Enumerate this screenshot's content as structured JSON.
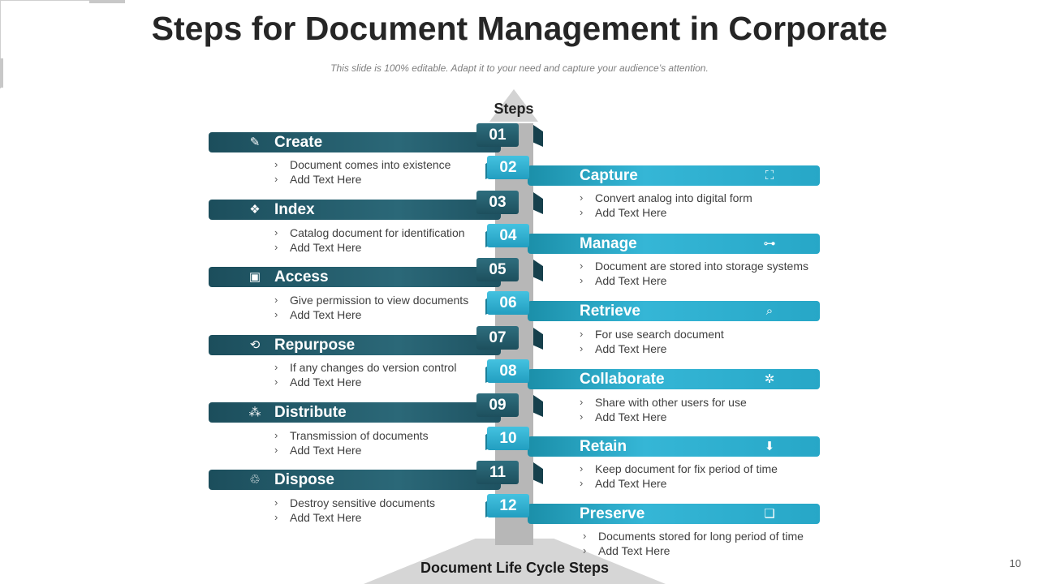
{
  "header": {
    "title": "Steps for Document Management in Corporate",
    "subtitle": "This slide is 100% editable. Adapt it to your need and capture your audience’s attention."
  },
  "diagram": {
    "steps_label": "Steps",
    "base_label": "Document Life Cycle Steps",
    "bullet_char": "›",
    "steps": [
      {
        "number": "01",
        "title": "Create",
        "icon": "edit-icon",
        "glyph": "✎",
        "points": [
          "Document comes into existence",
          "Add Text Here"
        ]
      },
      {
        "number": "02",
        "title": "Capture",
        "icon": "capture-icon",
        "glyph": "⛶",
        "points": [
          "Convert analog into digital form",
          "Add Text Here"
        ]
      },
      {
        "number": "03",
        "title": "Index",
        "icon": "index-icon",
        "glyph": "❖",
        "points": [
          "Catalog document for identification",
          "Add Text Here"
        ]
      },
      {
        "number": "04",
        "title": "Manage",
        "icon": "hierarchy-icon",
        "glyph": "⊶",
        "points": [
          "Document are stored into storage systems",
          "Add Text Here"
        ]
      },
      {
        "number": "05",
        "title": "Access",
        "icon": "monitor-icon",
        "glyph": "▣",
        "points": [
          "Give permission to view documents",
          "Add Text Here"
        ]
      },
      {
        "number": "06",
        "title": "Retrieve",
        "icon": "search-document-icon",
        "glyph": "⌕",
        "points": [
          "For use search document",
          "Add Text Here"
        ]
      },
      {
        "number": "07",
        "title": "Repurpose",
        "icon": "recycle-icon",
        "glyph": "⟲",
        "points": [
          "If any changes do version control",
          "Add Text Here"
        ]
      },
      {
        "number": "08",
        "title": "Collaborate",
        "icon": "collaborate-icon",
        "glyph": "✲",
        "points": [
          "Share with other users for use",
          "Add Text Here"
        ]
      },
      {
        "number": "09",
        "title": "Distribute",
        "icon": "distribute-icon",
        "glyph": "⁂",
        "points": [
          "Transmission of documents",
          "Add Text Here"
        ]
      },
      {
        "number": "10",
        "title": "Retain",
        "icon": "archive-box-icon",
        "glyph": "⬇",
        "points": [
          "Keep document for fix period of time",
          "Add Text Here"
        ]
      },
      {
        "number": "11",
        "title": "Dispose",
        "icon": "dispose-icon",
        "glyph": "♲",
        "points": [
          "Destroy sensitive documents",
          "Add Text Here"
        ]
      },
      {
        "number": "12",
        "title": "Preserve",
        "icon": "preserve-documents-icon",
        "glyph": "❏",
        "points": [
          "Documents stored for long period of time",
          "Add Text Here"
        ]
      }
    ]
  },
  "footer": {
    "page_number": "10"
  },
  "colors": {
    "dark_band": "#1e5261",
    "light_band": "#2aa9c9",
    "pole": "#b7b7b7",
    "title_text": "#262626"
  }
}
